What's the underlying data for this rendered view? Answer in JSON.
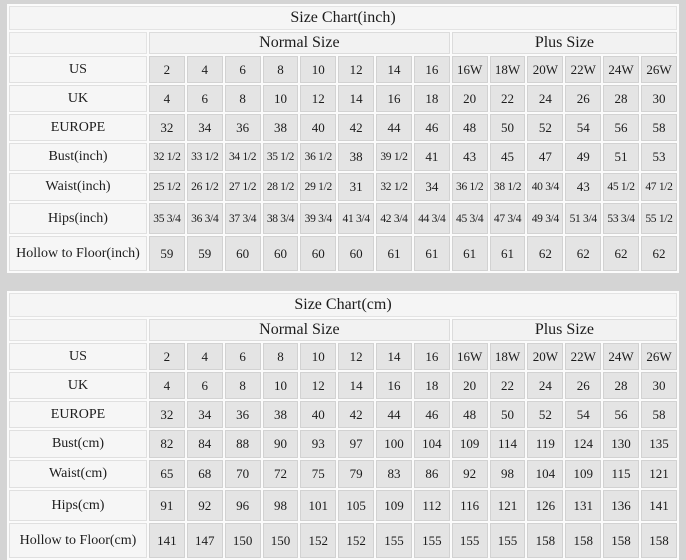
{
  "colors": {
    "page_bg": "#d4d4d4",
    "table_bg": "#fbfbfb",
    "label_cell_bg": "#f6f6f6",
    "data_cell_bg": "#e4e4e4",
    "cell_border": "#d2d2d2",
    "text": "#1c1c1c"
  },
  "chart_data": [
    {
      "type": "table",
      "title": "Size Chart(inch)",
      "group_headers": [
        "Normal Size",
        "Plus Size"
      ],
      "group_spans": [
        8,
        6
      ],
      "rows": [
        {
          "label": "US",
          "values": [
            "2",
            "4",
            "6",
            "8",
            "10",
            "12",
            "14",
            "16",
            "16W",
            "18W",
            "20W",
            "22W",
            "24W",
            "26W"
          ]
        },
        {
          "label": "UK",
          "values": [
            "4",
            "6",
            "8",
            "10",
            "12",
            "14",
            "16",
            "18",
            "20",
            "22",
            "24",
            "26",
            "28",
            "30"
          ]
        },
        {
          "label": "EUROPE",
          "values": [
            "32",
            "34",
            "36",
            "38",
            "40",
            "42",
            "44",
            "46",
            "48",
            "50",
            "52",
            "54",
            "56",
            "58"
          ]
        },
        {
          "label": "Bust(inch)",
          "values": [
            "32 1/2",
            "33 1/2",
            "34 1/2",
            "35 1/2",
            "36 1/2",
            "38",
            "39 1/2",
            "41",
            "43",
            "45",
            "47",
            "49",
            "51",
            "53"
          ]
        },
        {
          "label": "Waist(inch)",
          "values": [
            "25 1/2",
            "26 1/2",
            "27 1/2",
            "28 1/2",
            "29 1/2",
            "31",
            "32 1/2",
            "34",
            "36 1/2",
            "38 1/2",
            "40 3/4",
            "43",
            "45 1/2",
            "47 1/2"
          ]
        },
        {
          "label": "Hips(inch)",
          "values": [
            "35 3/4",
            "36 3/4",
            "37 3/4",
            "38 3/4",
            "39 3/4",
            "41 3/4",
            "42 3/4",
            "44 3/4",
            "45 3/4",
            "47 3/4",
            "49 3/4",
            "51 3/4",
            "53 3/4",
            "55 1/2"
          ]
        },
        {
          "label": "Hollow to Floor(inch)",
          "values": [
            "59",
            "59",
            "60",
            "60",
            "60",
            "60",
            "61",
            "61",
            "61",
            "61",
            "62",
            "62",
            "62",
            "62"
          ]
        }
      ]
    },
    {
      "type": "table",
      "title": "Size Chart(cm)",
      "group_headers": [
        "Normal Size",
        "Plus Size"
      ],
      "group_spans": [
        8,
        6
      ],
      "rows": [
        {
          "label": "US",
          "values": [
            "2",
            "4",
            "6",
            "8",
            "10",
            "12",
            "14",
            "16",
            "16W",
            "18W",
            "20W",
            "22W",
            "24W",
            "26W"
          ]
        },
        {
          "label": "UK",
          "values": [
            "4",
            "6",
            "8",
            "10",
            "12",
            "14",
            "16",
            "18",
            "20",
            "22",
            "24",
            "26",
            "28",
            "30"
          ]
        },
        {
          "label": "EUROPE",
          "values": [
            "32",
            "34",
            "36",
            "38",
            "40",
            "42",
            "44",
            "46",
            "48",
            "50",
            "52",
            "54",
            "56",
            "58"
          ]
        },
        {
          "label": "Bust(cm)",
          "values": [
            "82",
            "84",
            "88",
            "90",
            "93",
            "97",
            "100",
            "104",
            "109",
            "114",
            "119",
            "124",
            "130",
            "135"
          ]
        },
        {
          "label": "Waist(cm)",
          "values": [
            "65",
            "68",
            "70",
            "72",
            "75",
            "79",
            "83",
            "86",
            "92",
            "98",
            "104",
            "109",
            "115",
            "121"
          ]
        },
        {
          "label": "Hips(cm)",
          "values": [
            "91",
            "92",
            "96",
            "98",
            "101",
            "105",
            "109",
            "112",
            "116",
            "121",
            "126",
            "131",
            "136",
            "141"
          ]
        },
        {
          "label": "Hollow to Floor(cm)",
          "values": [
            "141",
            "147",
            "150",
            "150",
            "152",
            "152",
            "155",
            "155",
            "155",
            "155",
            "158",
            "158",
            "158",
            "158"
          ]
        }
      ]
    }
  ]
}
